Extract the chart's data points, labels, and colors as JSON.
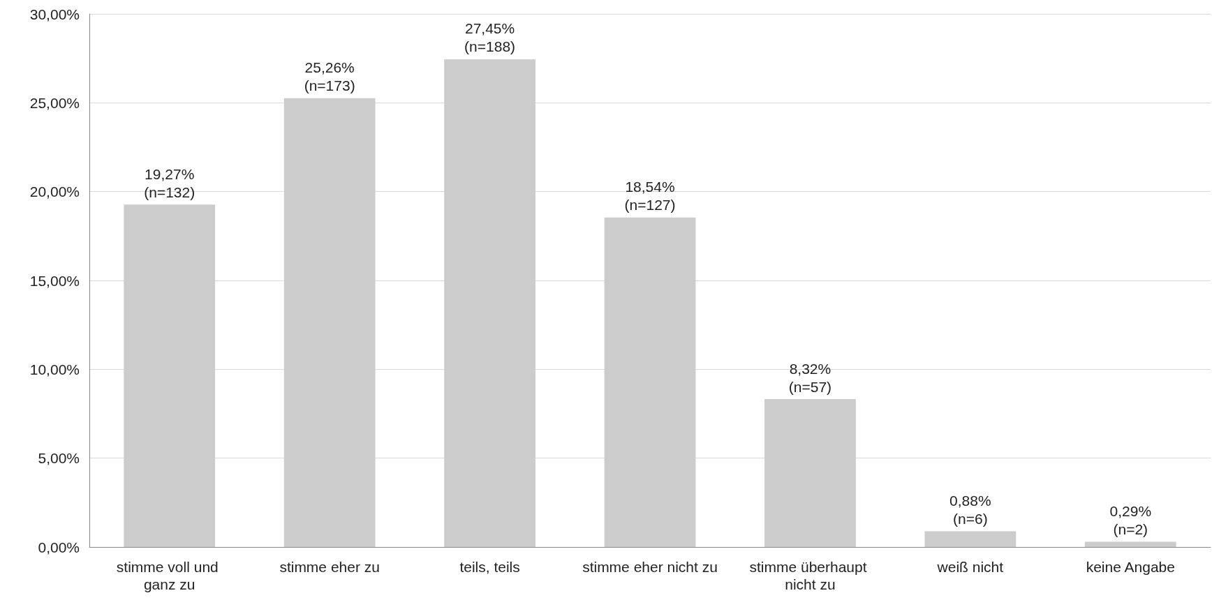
{
  "chart_data": {
    "type": "bar",
    "categories": [
      "stimme voll und ganz zu",
      "stimme eher zu",
      "teils, teils",
      "stimme eher nicht zu",
      "stimme überhaupt nicht zu",
      "weiß nicht",
      "keine Angabe"
    ],
    "values": [
      19.27,
      25.26,
      27.45,
      18.54,
      8.32,
      0.88,
      0.29
    ],
    "value_labels": [
      "19,27%\n(n=132)",
      "25,26%\n(n=173)",
      "27,45%\n(n=188)",
      "18,54%\n(n=127)",
      "8,32%\n(n=57)",
      "0,88%\n(n=6)",
      "0,29%\n(n=2)"
    ],
    "color": "#cccccc",
    "ylim": [
      0,
      30
    ],
    "yticks": [
      {
        "value": 0,
        "label": "0,00%"
      },
      {
        "value": 5,
        "label": "5,00%"
      },
      {
        "value": 10,
        "label": "10,00%"
      },
      {
        "value": 15,
        "label": "15,00%"
      },
      {
        "value": 20,
        "label": "20,00%"
      },
      {
        "value": 25,
        "label": "25,00%"
      },
      {
        "value": 30,
        "label": "30,00%"
      }
    ],
    "grid": "y"
  }
}
